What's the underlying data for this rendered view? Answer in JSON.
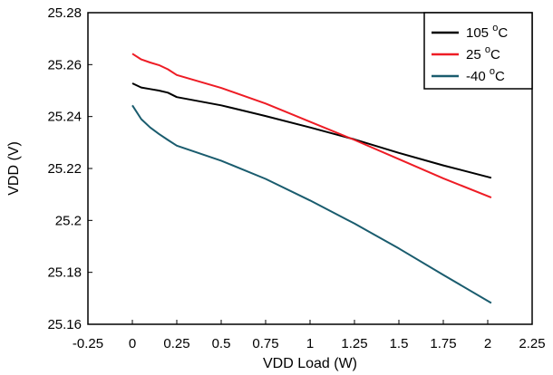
{
  "chart_data": {
    "type": "line",
    "xlabel": "VDD Load (W)",
    "ylabel": "VDD (V)",
    "xlim": [
      -0.25,
      2.25
    ],
    "ylim": [
      25.16,
      25.28
    ],
    "x_ticks": [
      "-0.25",
      "0",
      "0.25",
      "0.5",
      "0.75",
      "1",
      "1.25",
      "1.5",
      "1.75",
      "2",
      "2.25"
    ],
    "y_ticks": [
      "25.16",
      "25.18",
      "25.2",
      "25.22",
      "25.24",
      "25.26",
      "25.28"
    ],
    "grid": false,
    "legend_position": "top-right",
    "series": [
      {
        "name": "105 °C",
        "label_main": "105 ",
        "label_sup": "o",
        "label_unit": "C",
        "color": "#000000",
        "points": [
          [
            0,
            25.2528
          ],
          [
            0.05,
            25.2512
          ],
          [
            0.1,
            25.2506
          ],
          [
            0.15,
            25.25
          ],
          [
            0.2,
            25.2492
          ],
          [
            0.25,
            25.2475
          ],
          [
            0.5,
            25.2443
          ],
          [
            0.75,
            25.2402
          ],
          [
            1.0,
            25.2358
          ],
          [
            1.25,
            25.2312
          ],
          [
            1.5,
            25.226
          ],
          [
            1.75,
            25.2212
          ],
          [
            2.02,
            25.2164
          ]
        ]
      },
      {
        "name": "25 °C",
        "label_main": "25 ",
        "label_sup": "o",
        "label_unit": "C",
        "color": "#ee1c25",
        "points": [
          [
            0,
            25.2642
          ],
          [
            0.05,
            25.262
          ],
          [
            0.1,
            25.2608
          ],
          [
            0.15,
            25.2598
          ],
          [
            0.2,
            25.2582
          ],
          [
            0.25,
            25.256
          ],
          [
            0.5,
            25.251
          ],
          [
            0.75,
            25.245
          ],
          [
            1.0,
            25.238
          ],
          [
            1.25,
            25.231
          ],
          [
            1.5,
            25.2236
          ],
          [
            1.75,
            25.2162
          ],
          [
            2.02,
            25.2088
          ]
        ]
      },
      {
        "name": "-40 °C",
        "label_main": "-40 ",
        "label_sup": "o",
        "label_unit": "C",
        "color": "#1a5c6e",
        "points": [
          [
            0,
            25.2443
          ],
          [
            0.05,
            25.239
          ],
          [
            0.1,
            25.2358
          ],
          [
            0.15,
            25.2333
          ],
          [
            0.2,
            25.231
          ],
          [
            0.25,
            25.2288
          ],
          [
            0.5,
            25.223
          ],
          [
            0.75,
            25.216
          ],
          [
            1.0,
            25.2077
          ],
          [
            1.25,
            25.1988
          ],
          [
            1.5,
            25.1892
          ],
          [
            1.75,
            25.179
          ],
          [
            2.02,
            25.1682
          ]
        ]
      }
    ]
  }
}
